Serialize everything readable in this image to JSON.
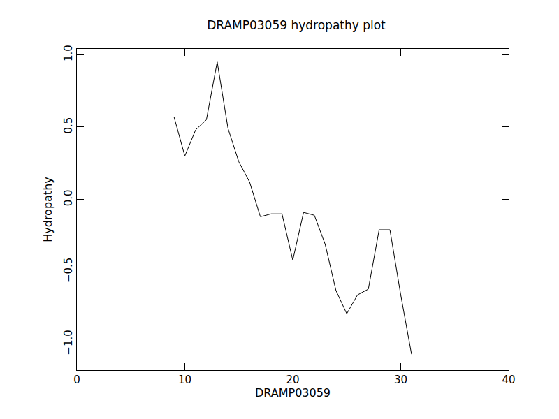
{
  "chart_data": {
    "type": "line",
    "title": "DRAMP03059 hydropathy plot",
    "x_label": "DRAMP03059",
    "y_label": "Hydropathy",
    "x": [
      9,
      10,
      11,
      12,
      13,
      14,
      15,
      16,
      17,
      18,
      19,
      20,
      21,
      22,
      23,
      24,
      25,
      26,
      27,
      28,
      29,
      30,
      31
    ],
    "values": [
      0.57,
      0.3,
      0.48,
      0.55,
      0.95,
      0.49,
      0.26,
      0.12,
      -0.12,
      -0.1,
      -0.1,
      -0.42,
      -0.09,
      -0.11,
      -0.31,
      -0.63,
      -0.79,
      -0.66,
      -0.62,
      -0.21,
      -0.21,
      -0.66,
      -1.07
    ],
    "color": "#000000",
    "xlim": [
      0,
      40
    ],
    "xticks": [
      0,
      10,
      20,
      30,
      40
    ],
    "ylim": [
      -1.18,
      1.04
    ],
    "yticks": [
      {
        "value": -1,
        "label": "−1.0"
      },
      {
        "value": -0.5,
        "label": "−0.5"
      },
      {
        "value": 0,
        "label": "0.0"
      },
      {
        "value": 0.5,
        "label": "0.5"
      },
      {
        "value": 1,
        "label": "1.0"
      }
    ],
    "grid": false
  }
}
